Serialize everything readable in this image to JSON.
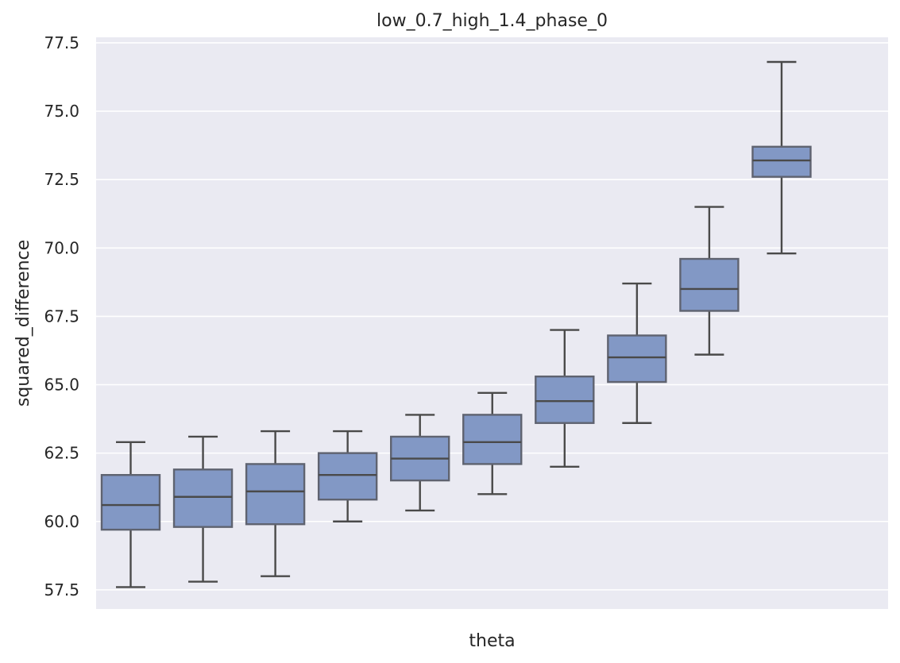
{
  "chart_data": {
    "type": "boxplot",
    "title": "low_0.7_high_1.4_phase_0",
    "xlabel": "theta",
    "ylabel": "squared_difference",
    "ylim": [
      56.8,
      77.7
    ],
    "yticks": [
      "57.5",
      "60.0",
      "62.5",
      "65.0",
      "67.5",
      "70.0",
      "72.5",
      "75.0",
      "77.5"
    ],
    "grid": true,
    "legend": "none",
    "colors": {
      "box_fill": "#8298c5",
      "box_edge": "#5f6370",
      "line": "#4a4a4a",
      "plot_bg": "#eaeaf2",
      "grid": "#ffffff"
    },
    "boxes": [
      {
        "whisker_low": 57.6,
        "q1": 59.7,
        "median": 60.6,
        "q3": 61.7,
        "whisker_high": 62.9
      },
      {
        "whisker_low": 57.8,
        "q1": 59.8,
        "median": 60.9,
        "q3": 61.9,
        "whisker_high": 63.1
      },
      {
        "whisker_low": 58.0,
        "q1": 59.9,
        "median": 61.1,
        "q3": 62.1,
        "whisker_high": 63.3
      },
      {
        "whisker_low": 60.0,
        "q1": 60.8,
        "median": 61.7,
        "q3": 62.5,
        "whisker_high": 63.3
      },
      {
        "whisker_low": 60.4,
        "q1": 61.5,
        "median": 62.3,
        "q3": 63.1,
        "whisker_high": 63.9
      },
      {
        "whisker_low": 61.0,
        "q1": 62.1,
        "median": 62.9,
        "q3": 63.9,
        "whisker_high": 64.7
      },
      {
        "whisker_low": 62.0,
        "q1": 63.6,
        "median": 64.4,
        "q3": 65.3,
        "whisker_high": 67.0
      },
      {
        "whisker_low": 63.6,
        "q1": 65.1,
        "median": 66.0,
        "q3": 66.8,
        "whisker_high": 68.7
      },
      {
        "whisker_low": 66.1,
        "q1": 67.7,
        "median": 68.5,
        "q3": 69.6,
        "whisker_high": 71.5
      },
      {
        "whisker_low": 69.8,
        "q1": 72.6,
        "median": 73.2,
        "q3": 73.7,
        "whisker_high": 76.8
      }
    ]
  }
}
